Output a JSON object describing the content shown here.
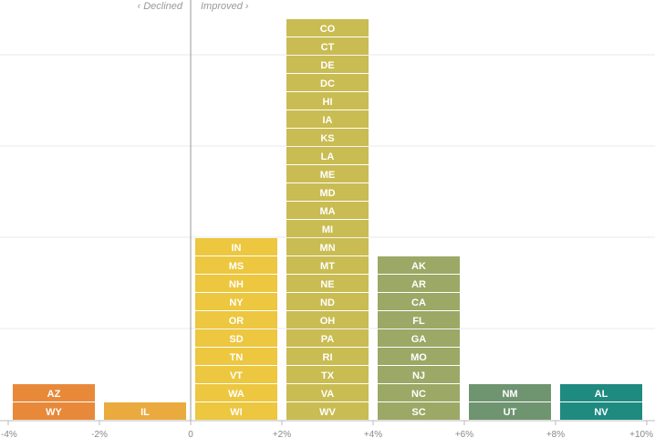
{
  "chart_data": {
    "type": "bar",
    "title": "",
    "xlabel": "",
    "ylabel": "",
    "grid": true,
    "xlim": [
      -4,
      10
    ],
    "annotations": {
      "declined": "‹ Declined",
      "improved": "Improved ›"
    },
    "ticks": [
      {
        "value": -4,
        "label": "-4%"
      },
      {
        "value": -2,
        "label": "-2%"
      },
      {
        "value": 0,
        "label": "0"
      },
      {
        "value": 2,
        "label": "+2%"
      },
      {
        "value": 4,
        "label": "+4%"
      },
      {
        "value": 6,
        "label": "+6%"
      },
      {
        "value": 8,
        "label": "+8%"
      },
      {
        "value": 10,
        "label": "+10%"
      }
    ],
    "bins": [
      {
        "range": [
          -4,
          -2
        ],
        "count": 2,
        "color": "#e8893a",
        "states": [
          "AZ",
          "WY"
        ]
      },
      {
        "range": [
          -2,
          0
        ],
        "count": 1,
        "color": "#ebaa3e",
        "states": [
          "IL"
        ]
      },
      {
        "range": [
          0,
          2
        ],
        "count": 10,
        "color": "#ecc73f",
        "states": [
          "IN",
          "MS",
          "NH",
          "NY",
          "OR",
          "SD",
          "TN",
          "VT",
          "WA",
          "WI"
        ]
      },
      {
        "range": [
          2,
          4
        ],
        "count": 22,
        "color": "#c9bc52",
        "states": [
          "CO",
          "CT",
          "DE",
          "DC",
          "HI",
          "IA",
          "KS",
          "LA",
          "ME",
          "MD",
          "MA",
          "MI",
          "MN",
          "MT",
          "NE",
          "ND",
          "OH",
          "PA",
          "RI",
          "TX",
          "VA",
          "WV"
        ]
      },
      {
        "range": [
          4,
          6
        ],
        "count": 9,
        "color": "#9ba866",
        "states": [
          "AK",
          "AR",
          "CA",
          "FL",
          "GA",
          "MO",
          "NJ",
          "NC",
          "SC"
        ]
      },
      {
        "range": [
          6,
          8
        ],
        "count": 2,
        "color": "#6e9470",
        "states": [
          "NM",
          "UT"
        ]
      },
      {
        "range": [
          8,
          10
        ],
        "count": 2,
        "color": "#1f8a80",
        "states": [
          "AL",
          "NV"
        ]
      }
    ]
  }
}
